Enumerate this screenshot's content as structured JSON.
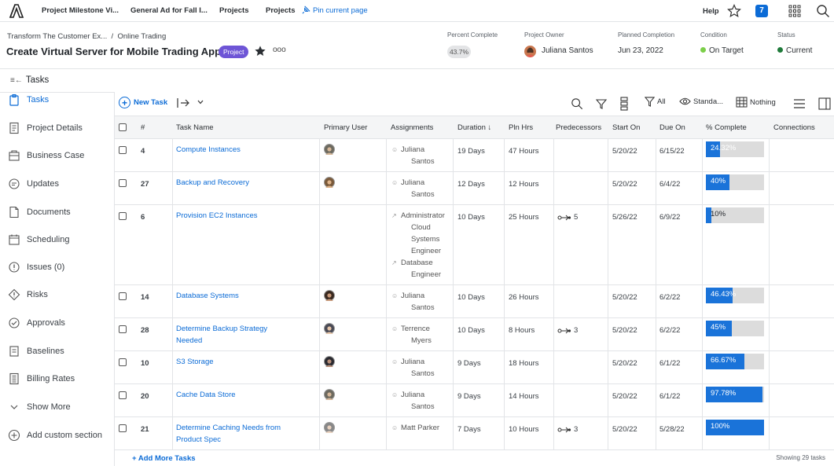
{
  "topbar": {
    "tabs": [
      "Project Milestone Vi...",
      "General Ad for Fall I...",
      "Projects",
      "Projects"
    ],
    "pin_label": "Pin current page",
    "help_label": "Help",
    "notifications_count": "7",
    "accent": "#0b6bd6"
  },
  "header": {
    "breadcrumb_parent": "Transform The Customer Ex...",
    "breadcrumb_sep": "/",
    "breadcrumb_current": "Online Trading",
    "title": "Create Virtual Server for Mobile Trading App",
    "type_badge": "Project",
    "more": "ooo",
    "percent_complete_label": "Percent Complete",
    "percent_complete_value": "43.7%",
    "owner_label": "Project Owner",
    "owner_value": "Juliana Santos",
    "planned_label": "Planned Completion",
    "planned_value": "Jun 23, 2022",
    "condition_label": "Condition",
    "condition_value": "On Target",
    "condition_color": "#7ccf4a",
    "status_label": "Status",
    "status_value": "Current",
    "status_color": "#1f7a3a"
  },
  "sidebar": {
    "title": "Tasks",
    "items": [
      {
        "label": "Tasks",
        "icon": "clipboard-icon"
      },
      {
        "label": "Project Details",
        "icon": "document-icon"
      },
      {
        "label": "Business Case",
        "icon": "briefcase-icon"
      },
      {
        "label": "Updates",
        "icon": "chat-icon"
      },
      {
        "label": "Documents",
        "icon": "file-icon"
      },
      {
        "label": "Scheduling",
        "icon": "calendar-icon"
      },
      {
        "label": "Issues (0)",
        "icon": "alert-icon"
      },
      {
        "label": "Risks",
        "icon": "diamond-alert-icon"
      },
      {
        "label": "Approvals",
        "icon": "check-circle-icon"
      },
      {
        "label": "Baselines",
        "icon": "baseline-icon"
      },
      {
        "label": "Billing Rates",
        "icon": "billing-icon"
      },
      {
        "label": "Show More",
        "icon": "chevron-down-icon"
      },
      {
        "label": "Add custom section",
        "icon": "plus-circle-icon"
      }
    ]
  },
  "toolbar": {
    "new_task": "New Task",
    "filter_label": "All",
    "view_label": "Standa...",
    "group_label": "Nothing"
  },
  "table": {
    "headers": [
      "#",
      "Task Name",
      "Primary User",
      "Assignments",
      "Duration ↓",
      "Pln Hrs",
      "Predecessors",
      "Start On",
      "Due On",
      "% Complete",
      "Connections"
    ],
    "rows": [
      {
        "num": "4",
        "name": [
          "Compute Instances"
        ],
        "assign": [
          "Juliana",
          "Santos"
        ],
        "duration": "19 Days",
        "hours": "47 Hours",
        "pred": "",
        "start": "5/20/22",
        "due": "6/15/22",
        "pct": "24.32%",
        "pct_value": 24.32
      },
      {
        "num": "27",
        "name": [
          "Backup and Recovery"
        ],
        "assign": [
          "Juliana",
          "Santos"
        ],
        "duration": "12 Days",
        "hours": "12 Hours",
        "pred": "",
        "start": "5/20/22",
        "due": "6/4/22",
        "pct": "40%",
        "pct_value": 40
      },
      {
        "num": "6",
        "name": [
          "Provision EC2 Instances"
        ],
        "assign": [
          "Administrator",
          "Cloud",
          "Systems",
          "Engineer",
          "Database",
          "Engineer"
        ],
        "duration": "10 Days",
        "hours": "25 Hours",
        "pred": "5",
        "start": "5/26/22",
        "due": "6/9/22",
        "pct": "10%",
        "pct_value": 10
      },
      {
        "num": "14",
        "name": [
          "Database Systems"
        ],
        "assign": [
          "Juliana",
          "Santos"
        ],
        "duration": "10 Days",
        "hours": "26 Hours",
        "pred": "",
        "start": "5/20/22",
        "due": "6/2/22",
        "pct": "46.43%",
        "pct_value": 46.43
      },
      {
        "num": "28",
        "name": [
          "Determine Backup Strategy",
          "Needed"
        ],
        "assign": [
          "Terrence",
          "Myers"
        ],
        "duration": "10 Days",
        "hours": "8 Hours",
        "pred": "3",
        "start": "5/20/22",
        "due": "6/2/22",
        "pct": "45%",
        "pct_value": 45
      },
      {
        "num": "10",
        "name": [
          "S3 Storage"
        ],
        "assign": [
          "Juliana",
          "Santos"
        ],
        "duration": "9 Days",
        "hours": "18 Hours",
        "pred": "",
        "start": "5/20/22",
        "due": "6/1/22",
        "pct": "66.67%",
        "pct_value": 66.67
      },
      {
        "num": "20",
        "name": [
          "Cache Data Store"
        ],
        "assign": [
          "Juliana",
          "Santos"
        ],
        "duration": "9 Days",
        "hours": "14 Hours",
        "pred": "",
        "start": "5/20/22",
        "due": "6/1/22",
        "pct": "97.78%",
        "pct_value": 97.78
      },
      {
        "num": "21",
        "name": [
          "Determine Caching Needs from",
          "Product Spec"
        ],
        "assign": [
          "Matt Parker"
        ],
        "duration": "7 Days",
        "hours": "10 Hours",
        "pred": "3",
        "start": "5/20/22",
        "due": "5/28/22",
        "pct": "100%",
        "pct_value": 100
      }
    ]
  },
  "footer": {
    "add_more": "+ Add More Tasks",
    "showing": "Showing 29 tasks"
  }
}
